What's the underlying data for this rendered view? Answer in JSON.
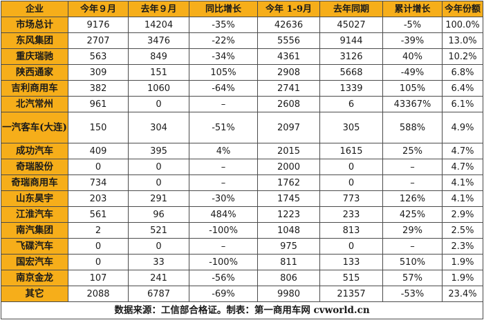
{
  "headers": [
    "企业",
    "今年９月",
    "去年９月",
    "同比增长",
    "今年 1-9月",
    "去年同期",
    "累计增长",
    "今年份额"
  ],
  "rows": [
    {
      "name": "市场总计",
      "cells": [
        "9176",
        "14204",
        "-35%",
        "42636",
        "45027",
        "-5%",
        "100.0%"
      ]
    },
    {
      "name": "东风集团",
      "cells": [
        "2707",
        "3476",
        "-22%",
        "5556",
        "9144",
        "-39%",
        "13.0%"
      ]
    },
    {
      "name": "重庆瑞驰",
      "cells": [
        "563",
        "849",
        "-34%",
        "4361",
        "3126",
        "40%",
        "10.2%"
      ]
    },
    {
      "name": "陕西通家",
      "cells": [
        "309",
        "151",
        "105%",
        "2908",
        "5668",
        "-49%",
        "6.8%"
      ]
    },
    {
      "name": "吉利商用车",
      "cells": [
        "382",
        "1060",
        "-64%",
        "2741",
        "1339",
        "105%",
        "6.4%"
      ]
    },
    {
      "name": "北汽常州",
      "cells": [
        "961",
        "0",
        "–",
        "2608",
        "6",
        "43367%",
        "6.1%"
      ]
    },
    {
      "name": "一汽客车(大连)",
      "cells": [
        "150",
        "304",
        "-51%",
        "2097",
        "305",
        "588%",
        "4.9%"
      ]
    },
    {
      "name": "成功汽车",
      "cells": [
        "409",
        "395",
        "4%",
        "2015",
        "1615",
        "25%",
        "4.7%"
      ]
    },
    {
      "name": "奇瑞股份",
      "cells": [
        "0",
        "0",
        "–",
        "2000",
        "0",
        "–",
        "4.7%"
      ]
    },
    {
      "name": "奇瑞商用车",
      "cells": [
        "734",
        "0",
        "–",
        "1762",
        "0",
        "–",
        "4.1%"
      ]
    },
    {
      "name": "山东昊宇",
      "cells": [
        "203",
        "291",
        "-30%",
        "1745",
        "773",
        "126%",
        "4.1%"
      ]
    },
    {
      "name": "江淮汽车",
      "cells": [
        "561",
        "96",
        "484%",
        "1223",
        "233",
        "425%",
        "2.9%"
      ]
    },
    {
      "name": "南汽集团",
      "cells": [
        "2",
        "521",
        "-100%",
        "1048",
        "813",
        "29%",
        "2.5%"
      ]
    },
    {
      "name": "飞碟汽车",
      "cells": [
        "0",
        "0",
        "–",
        "975",
        "0",
        "–",
        "2.3%"
      ]
    },
    {
      "name": "国宏汽车",
      "cells": [
        "0",
        "33",
        "-100%",
        "811",
        "133",
        "510%",
        "1.9%"
      ]
    },
    {
      "name": "南京金龙",
      "cells": [
        "107",
        "241",
        "-56%",
        "806",
        "515",
        "57%",
        "1.9%"
      ]
    },
    {
      "name": "其它",
      "cells": [
        "2088",
        "6787",
        "-69%",
        "9980",
        "21357",
        "-53%",
        "23.4%"
      ]
    }
  ],
  "source": "数据来源：工信部合格证。制表：第一商用车网 cvworld.cn",
  "colors": {
    "header_bg": "#f6ae1a",
    "border": "#4a4a4a"
  }
}
